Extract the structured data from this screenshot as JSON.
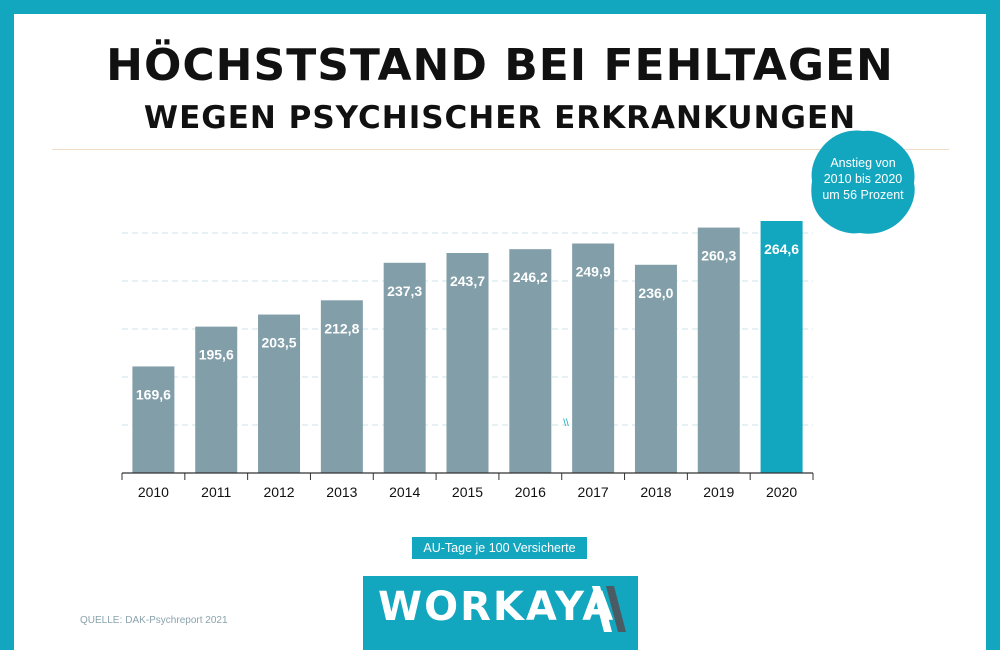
{
  "header": {
    "title_line1": "HÖCHSTSTAND BEI FEHLTAGEN",
    "title_line2": "WEGEN PSYCHISCHER ERKRANKUNGEN"
  },
  "badge": {
    "text": "Anstieg von 2010 bis 2020 um 56 Prozent",
    "line1": "Anstieg von",
    "line2": "2010 bis 2020",
    "line3": "um 56 Prozent"
  },
  "colors": {
    "frame": "#13a6bf",
    "bar": "#819ea9",
    "highlight_bar": "#13a6bf",
    "grid": "#cfe0e6"
  },
  "chart_data": {
    "type": "bar",
    "categories": [
      "2010",
      "2011",
      "2012",
      "2013",
      "2014",
      "2015",
      "2016",
      "2017",
      "2018",
      "2019",
      "2020"
    ],
    "values": [
      169.6,
      195.6,
      203.5,
      212.8,
      237.3,
      243.7,
      246.2,
      249.9,
      236.0,
      260.3,
      264.6
    ],
    "value_labels": [
      "169,6",
      "195,6",
      "203,5",
      "212,8",
      "237,3",
      "243,7",
      "246,2",
      "249,9",
      "236,0",
      "260,3",
      "264,6"
    ],
    "highlight_index": 10,
    "ylabel": "AU-Tage je 100 Versicherte",
    "grid": true,
    "y_axis_break": true,
    "axis_break_mark": "\\\\",
    "legend": "none"
  },
  "unit_label": "AU-Tage je 100 Versicherte",
  "logo": {
    "text": "WORKAYA",
    "mark": "slashes-icon"
  },
  "source": {
    "label": "QUELLE:",
    "name": "DAK-Psychreport 2021"
  }
}
